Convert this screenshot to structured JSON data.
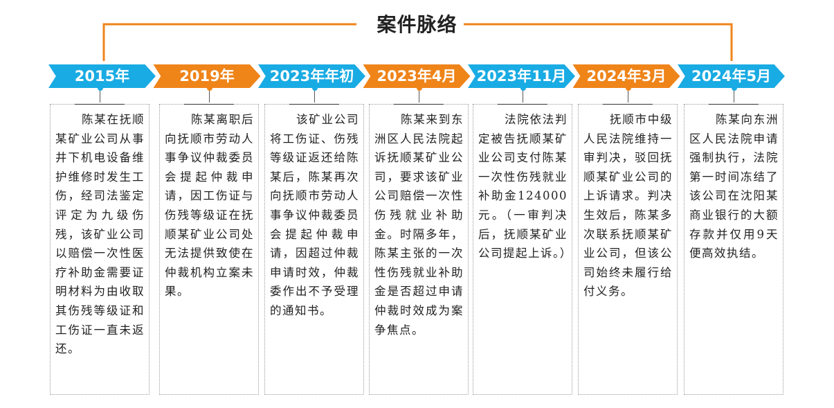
{
  "title": "案件脉络",
  "events": [
    {
      "date": "2015年",
      "text": "陈某在抚顺某矿业公司从事井下机电设备维护维修时发生工伤，经司法鉴定评定为九级伤残，该矿业公司以赔偿一次性医疗补助金需要证明材料为由收取其伤残等级证和工伤证一直未返还。"
    },
    {
      "date": "2019年",
      "text": "陈某离职后向抚顺市劳动人事争议仲裁委员会提起仲裁申请，因工伤证与伤残等级证在抚顺某矿业公司处无法提供致使在仲裁机构立案未果。"
    },
    {
      "date": "2023年年初",
      "text": "该矿业公司将工伤证、伤残等级证返还给陈某后，陈某再次向抚顺市劳动人事争议仲裁委员会提起仲裁申请，因超过仲裁申请时效，仲裁委作出不予受理的通知书。"
    },
    {
      "date": "2023年4月",
      "text": "陈某来到东洲区人民法院起诉抚顺某矿业公司，要求该矿业公司赔偿一次性伤残就业补助金。时隔多年，陈某主张的一次性伤残就业补助金是否超过申请仲裁时效成为案争焦点。"
    },
    {
      "date": "2023年11月",
      "text": "法院依法判定被告抚顺某矿业公司支付陈某一次性伤残就业补助金124000元。（一审判决后，抚顺某矿业公司提起上诉。）"
    },
    {
      "date": "2024年3月",
      "text": "抚顺市中级人民法院维持一审判决，驳回抚顺某矿业公司的上诉请求。判决生效后，陈某多次联系抚顺某矿业公司，但该公司始终未履行给付义务。"
    },
    {
      "date": "2024年5月",
      "text": "陈某向东洲区人民法院申请强制执行，法院第一时间冻结了该公司在沈阳某商业银行的大额存款并仅用9天便高效执结。"
    }
  ]
}
